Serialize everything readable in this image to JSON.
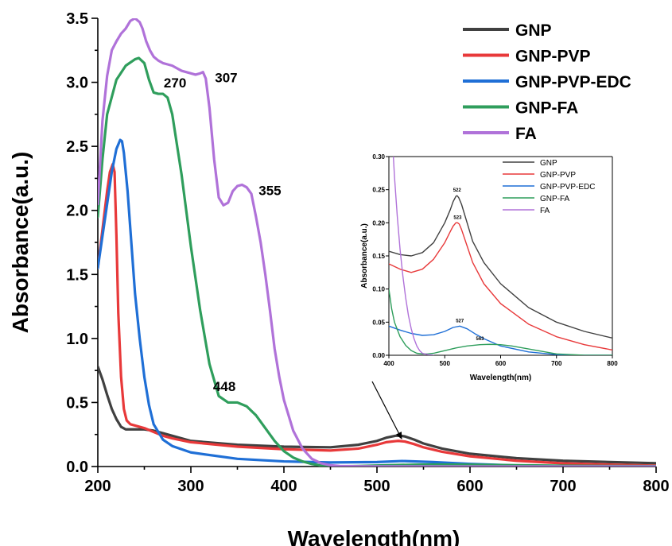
{
  "chart_data": [
    {
      "type": "line",
      "title": "",
      "xlabel": "Wavelength(nm)",
      "ylabel": "Absorbance(a.u.)",
      "xlim": [
        200,
        800
      ],
      "ylim": [
        0,
        3.5
      ],
      "xticks": [
        200,
        300,
        400,
        500,
        600,
        700,
        800
      ],
      "yticks": [
        0.0,
        0.5,
        1.0,
        1.5,
        2.0,
        2.5,
        3.0,
        3.5
      ],
      "xtick_labels": [
        "200",
        "300",
        "400",
        "500",
        "600",
        "700",
        "800"
      ],
      "ytick_labels": [
        "0.0",
        "0.5",
        "1.0",
        "1.5",
        "2.0",
        "2.5",
        "3.0",
        "3.5"
      ],
      "legend_position": "top-right",
      "grid": false,
      "series": [
        {
          "name": "GNP",
          "color": "#404040",
          "x": [
            200,
            205,
            210,
            215,
            220,
            225,
            230,
            240,
            250,
            260,
            270,
            280,
            300,
            350,
            400,
            450,
            480,
            500,
            510,
            520,
            525,
            530,
            540,
            550,
            570,
            600,
            650,
            700,
            750,
            800
          ],
          "y": [
            0.78,
            0.68,
            0.56,
            0.45,
            0.37,
            0.31,
            0.29,
            0.29,
            0.29,
            0.28,
            0.26,
            0.24,
            0.2,
            0.17,
            0.155,
            0.15,
            0.17,
            0.2,
            0.225,
            0.24,
            0.241,
            0.235,
            0.21,
            0.18,
            0.14,
            0.1,
            0.065,
            0.045,
            0.035,
            0.026
          ]
        },
        {
          "name": "GNP-PVP",
          "color": "#e8393a",
          "x": [
            200,
            205,
            210,
            213,
            216,
            218,
            220,
            222,
            225,
            228,
            231,
            235,
            240,
            250,
            260,
            270,
            280,
            300,
            350,
            400,
            450,
            480,
            500,
            510,
            520,
            523,
            530,
            540,
            550,
            570,
            600,
            650,
            700,
            750,
            800
          ],
          "y": [
            1.55,
            1.85,
            2.15,
            2.3,
            2.36,
            2.3,
            1.8,
            1.2,
            0.7,
            0.45,
            0.36,
            0.33,
            0.32,
            0.3,
            0.27,
            0.24,
            0.22,
            0.19,
            0.155,
            0.135,
            0.125,
            0.14,
            0.17,
            0.19,
            0.198,
            0.2,
            0.195,
            0.175,
            0.15,
            0.115,
            0.08,
            0.045,
            0.025,
            0.015,
            0.007
          ]
        },
        {
          "name": "GNP-PVP-EDC",
          "color": "#1f6fd6",
          "x": [
            200,
            205,
            210,
            215,
            220,
            224,
            226,
            228,
            232,
            236,
            240,
            245,
            250,
            255,
            260,
            270,
            280,
            300,
            350,
            400,
            450,
            500,
            527,
            560,
            600,
            650,
            700,
            750,
            800
          ],
          "y": [
            1.55,
            1.8,
            2.05,
            2.3,
            2.48,
            2.55,
            2.54,
            2.45,
            2.15,
            1.75,
            1.35,
            1.0,
            0.7,
            0.48,
            0.33,
            0.21,
            0.16,
            0.11,
            0.06,
            0.04,
            0.032,
            0.035,
            0.043,
            0.035,
            0.02,
            0.008,
            0.003,
            0.002,
            0.001
          ]
        },
        {
          "name": "GNP-FA",
          "color": "#2f9e5c",
          "x": [
            200,
            205,
            210,
            220,
            230,
            240,
            244,
            250,
            255,
            260,
            265,
            270,
            275,
            280,
            290,
            300,
            310,
            320,
            330,
            340,
            350,
            360,
            370,
            380,
            390,
            400,
            410,
            420,
            430,
            440,
            450,
            460,
            480,
            500,
            520,
            540,
            563,
            600,
            650,
            700,
            750,
            800
          ],
          "y": [
            1.95,
            2.4,
            2.75,
            3.02,
            3.13,
            3.18,
            3.19,
            3.15,
            3.02,
            2.92,
            2.91,
            2.91,
            2.88,
            2.75,
            2.28,
            1.72,
            1.22,
            0.8,
            0.55,
            0.5,
            0.5,
            0.47,
            0.4,
            0.3,
            0.2,
            0.12,
            0.07,
            0.04,
            0.02,
            0.008,
            0.003,
            0.002,
            0.004,
            0.008,
            0.012,
            0.014,
            0.016,
            0.014,
            0.01,
            0.006,
            0.004,
            0.003
          ]
        },
        {
          "name": "FA",
          "color": "#b072d9",
          "x": [
            200,
            205,
            210,
            215,
            220,
            225,
            230,
            235,
            240,
            245,
            248,
            252,
            256,
            260,
            265,
            270,
            275,
            280,
            285,
            290,
            295,
            300,
            305,
            310,
            313,
            316,
            320,
            325,
            330,
            335,
            340,
            345,
            350,
            355,
            360,
            365,
            370,
            375,
            380,
            385,
            390,
            395,
            400,
            410,
            420,
            430,
            440,
            450,
            460,
            480,
            500,
            600,
            700,
            800
          ],
          "y": [
            2.05,
            2.7,
            3.05,
            3.25,
            3.32,
            3.38,
            3.42,
            3.48,
            3.5,
            3.47,
            3.42,
            3.32,
            3.25,
            3.2,
            3.17,
            3.15,
            3.14,
            3.13,
            3.11,
            3.09,
            3.08,
            3.07,
            3.06,
            3.07,
            3.08,
            3.03,
            2.8,
            2.4,
            2.1,
            2.04,
            2.06,
            2.15,
            2.19,
            2.2,
            2.18,
            2.13,
            1.95,
            1.75,
            1.5,
            1.22,
            0.92,
            0.7,
            0.52,
            0.28,
            0.14,
            0.06,
            0.025,
            0.01,
            0.004,
            0.002,
            0.001,
            0.0,
            0.0,
            0.0
          ]
        }
      ],
      "annotations": [
        {
          "label": "270",
          "x": 283,
          "y": 2.96
        },
        {
          "label": "307",
          "x": 338,
          "y": 3.0
        },
        {
          "label": "355",
          "x": 385,
          "y": 2.12
        },
        {
          "label": "448",
          "x": 336,
          "y": 0.59
        }
      ]
    },
    {
      "type": "line",
      "title": "",
      "xlabel": "Wavelength(nm)",
      "ylabel": "Absorbance(a.u.)",
      "xlim": [
        400,
        800
      ],
      "ylim": [
        0,
        0.3
      ],
      "xticks": [
        400,
        500,
        600,
        700,
        800
      ],
      "yticks": [
        0.0,
        0.05,
        0.1,
        0.15,
        0.2,
        0.25,
        0.3
      ],
      "xtick_labels": [
        "400",
        "500",
        "600",
        "700",
        "800"
      ],
      "ytick_labels": [
        "0.00",
        "0.05",
        "0.10",
        "0.15",
        "0.20",
        "0.25",
        "0.30"
      ],
      "legend_position": "top-right",
      "grid": false,
      "series": [
        {
          "name": "GNP",
          "color": "#404040",
          "x": [
            400,
            420,
            440,
            460,
            480,
            500,
            510,
            515,
            520,
            522,
            525,
            530,
            540,
            550,
            570,
            600,
            650,
            700,
            750,
            800
          ],
          "y": [
            0.157,
            0.152,
            0.15,
            0.155,
            0.17,
            0.2,
            0.22,
            0.232,
            0.24,
            0.241,
            0.238,
            0.228,
            0.2,
            0.172,
            0.14,
            0.108,
            0.072,
            0.05,
            0.036,
            0.026
          ]
        },
        {
          "name": "GNP-PVP",
          "color": "#e8393a",
          "x": [
            400,
            420,
            440,
            460,
            480,
            500,
            510,
            515,
            520,
            523,
            526,
            530,
            540,
            550,
            570,
            600,
            650,
            700,
            750,
            800
          ],
          "y": [
            0.138,
            0.13,
            0.125,
            0.13,
            0.145,
            0.17,
            0.187,
            0.195,
            0.2,
            0.2,
            0.198,
            0.19,
            0.165,
            0.14,
            0.108,
            0.078,
            0.047,
            0.028,
            0.016,
            0.008
          ]
        },
        {
          "name": "GNP-PVP-EDC",
          "color": "#1f6fd6",
          "x": [
            400,
            420,
            440,
            460,
            480,
            500,
            515,
            527,
            540,
            555,
            570,
            600,
            650,
            700,
            750,
            800
          ],
          "y": [
            0.044,
            0.038,
            0.033,
            0.03,
            0.031,
            0.036,
            0.042,
            0.044,
            0.04,
            0.032,
            0.025,
            0.014,
            0.005,
            0.001,
            0.0,
            0.0
          ]
        },
        {
          "name": "GNP-FA",
          "color": "#2f9e5c",
          "x": [
            400,
            405,
            410,
            420,
            430,
            440,
            450,
            460,
            470,
            480,
            490,
            500,
            520,
            540,
            563,
            580,
            600,
            620,
            640,
            660,
            680,
            700,
            750,
            800
          ],
          "y": [
            0.1,
            0.07,
            0.05,
            0.028,
            0.015,
            0.007,
            0.003,
            0.002,
            0.002,
            0.003,
            0.005,
            0.007,
            0.011,
            0.014,
            0.016,
            0.0165,
            0.016,
            0.014,
            0.011,
            0.008,
            0.005,
            0.002,
            0.0,
            0.0
          ]
        },
        {
          "name": "FA",
          "color": "#b072d9",
          "x": [
            408,
            410,
            415,
            420,
            425,
            430,
            435,
            440,
            445,
            450,
            455,
            460,
            470,
            480
          ],
          "y": [
            0.3,
            0.27,
            0.21,
            0.16,
            0.12,
            0.087,
            0.06,
            0.04,
            0.025,
            0.014,
            0.007,
            0.003,
            0.001,
            0.0
          ]
        }
      ],
      "annotations": [
        {
          "label": "522",
          "x": 522,
          "y": 0.247
        },
        {
          "label": "523",
          "x": 523,
          "y": 0.206
        },
        {
          "label": "527",
          "x": 527,
          "y": 0.05
        },
        {
          "label": "563",
          "x": 563,
          "y": 0.023
        }
      ]
    }
  ]
}
